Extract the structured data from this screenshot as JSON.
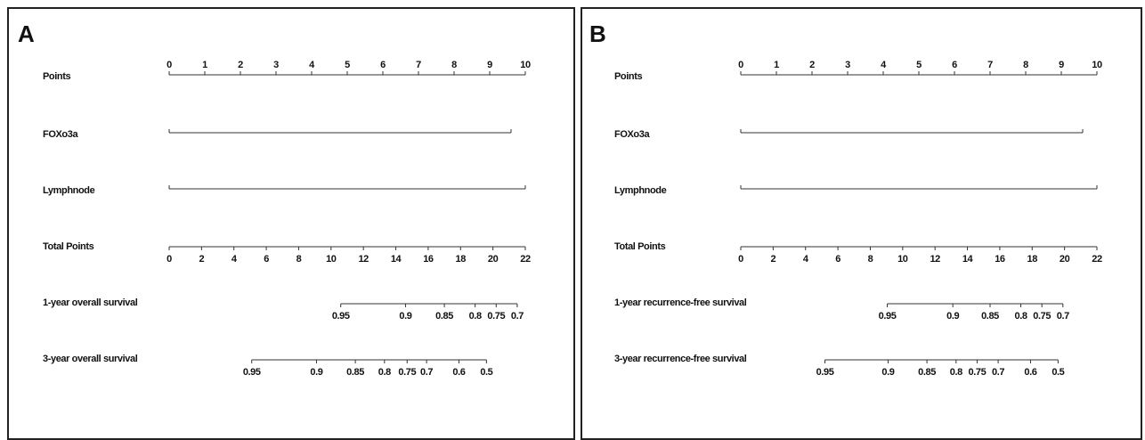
{
  "chart_data": [
    {
      "type": "nomogram",
      "panel_label": "A",
      "points": {
        "name": "Points",
        "xlim": [
          0,
          10
        ],
        "ticks": [
          0,
          1,
          2,
          3,
          4,
          5,
          6,
          7,
          8,
          9,
          10
        ]
      },
      "predictors": [
        {
          "name": "FOXo3a",
          "range": [
            0,
            9.6
          ]
        },
        {
          "name": "Lymphnode",
          "range": [
            0,
            10
          ]
        }
      ],
      "total_points": {
        "name": "Total Points",
        "xlim": [
          0,
          22
        ],
        "ticks": [
          0,
          2,
          4,
          6,
          8,
          10,
          12,
          14,
          16,
          18,
          20,
          22
        ]
      },
      "outcomes": [
        {
          "name": "1-year overall survival",
          "ticks": [
            {
              "value": 10.6,
              "label": "0.95"
            },
            {
              "value": 14.6,
              "label": "0.9"
            },
            {
              "value": 17.0,
              "label": "0.85"
            },
            {
              "value": 18.9,
              "label": "0.8"
            },
            {
              "value": 20.2,
              "label": "0.75"
            },
            {
              "value": 21.5,
              "label": "0.7"
            }
          ]
        },
        {
          "name": "3-year overall survival",
          "ticks": [
            {
              "value": 5.1,
              "label": "0.95"
            },
            {
              "value": 9.1,
              "label": "0.9"
            },
            {
              "value": 11.5,
              "label": "0.85"
            },
            {
              "value": 13.3,
              "label": "0.8"
            },
            {
              "value": 14.7,
              "label": "0.75"
            },
            {
              "value": 15.9,
              "label": "0.7"
            },
            {
              "value": 17.9,
              "label": "0.6"
            },
            {
              "value": 19.6,
              "label": "0.5"
            }
          ]
        }
      ]
    },
    {
      "type": "nomogram",
      "panel_label": "B",
      "points": {
        "name": "Points",
        "xlim": [
          0,
          10
        ],
        "ticks": [
          0,
          1,
          2,
          3,
          4,
          5,
          6,
          7,
          8,
          9,
          10
        ]
      },
      "predictors": [
        {
          "name": "FOXo3a",
          "range": [
            0,
            9.6
          ]
        },
        {
          "name": "Lymphnode",
          "range": [
            0,
            10
          ]
        }
      ],
      "total_points": {
        "name": "Total Points",
        "xlim": [
          0,
          22
        ],
        "ticks": [
          0,
          2,
          4,
          6,
          8,
          10,
          12,
          14,
          16,
          18,
          20,
          22
        ]
      },
      "outcomes": [
        {
          "name": "1-year recurrence-free survival",
          "ticks": [
            {
              "value": 9.05,
              "label": "0.95"
            },
            {
              "value": 13.1,
              "label": "0.9"
            },
            {
              "value": 15.4,
              "label": "0.85"
            },
            {
              "value": 17.3,
              "label": "0.8"
            },
            {
              "value": 18.6,
              "label": "0.75"
            },
            {
              "value": 19.9,
              "label": "0.7"
            }
          ]
        },
        {
          "name": "3-year recurrence-free survival",
          "ticks": [
            {
              "value": 5.2,
              "label": "0.95"
            },
            {
              "value": 9.1,
              "label": "0.9"
            },
            {
              "value": 11.5,
              "label": "0.85"
            },
            {
              "value": 13.3,
              "label": "0.8"
            },
            {
              "value": 14.6,
              "label": "0.75"
            },
            {
              "value": 15.9,
              "label": "0.7"
            },
            {
              "value": 17.9,
              "label": "0.6"
            },
            {
              "value": 19.6,
              "label": "0.5"
            }
          ]
        }
      ]
    }
  ]
}
